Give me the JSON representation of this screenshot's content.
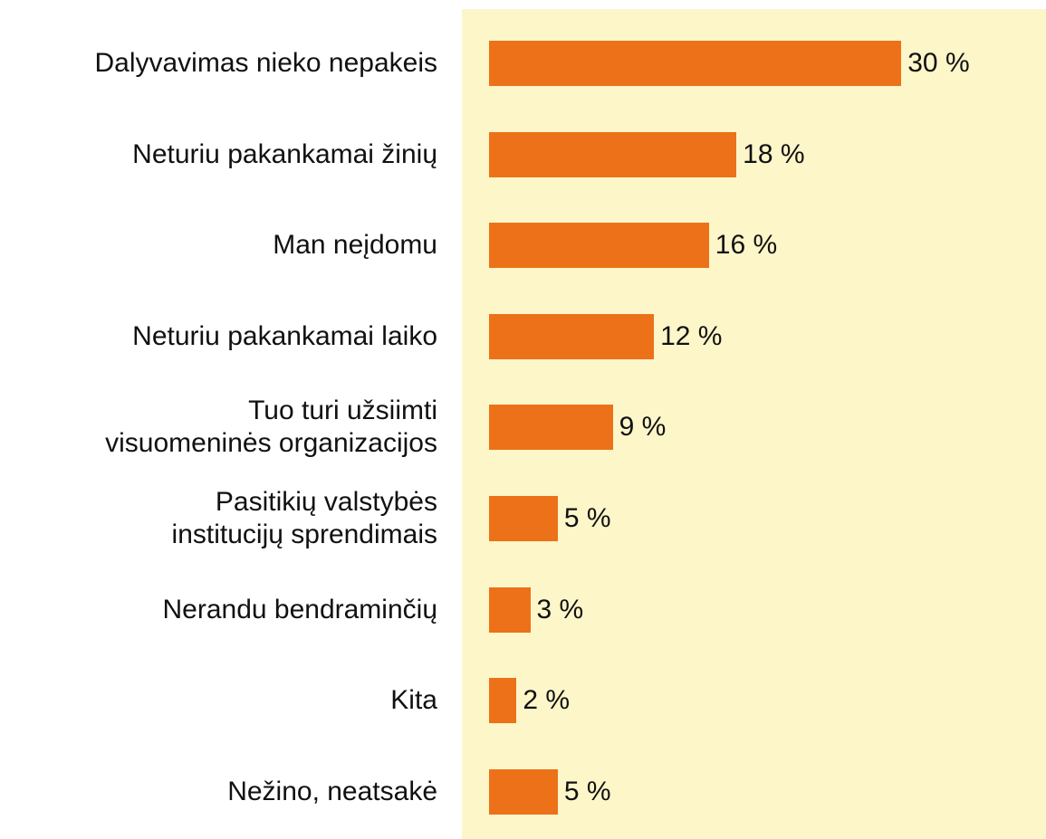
{
  "chart_data": {
    "type": "bar",
    "orientation": "horizontal",
    "categories": [
      "Dalyvavimas nieko nepakeis",
      "Neturiu pakankamai žinių",
      "Man neįdomu",
      "Neturiu pakankamai laiko",
      "Tuo turi užsiimti\nvisuomeninės organizacijos",
      "Pasitikių valstybės\ninstitucijų sprendimais",
      "Nerandu bendraminčių",
      "Kita",
      "Nežino, neatsakė"
    ],
    "values": [
      30,
      18,
      16,
      12,
      9,
      5,
      3,
      2,
      5
    ],
    "value_labels": [
      "30 %",
      "18 %",
      "16 %",
      "12 %",
      "9 %",
      "5 %",
      "3 %",
      "2 %",
      "5 %"
    ],
    "color": "#ec7119",
    "xlim": [
      0,
      40
    ]
  }
}
